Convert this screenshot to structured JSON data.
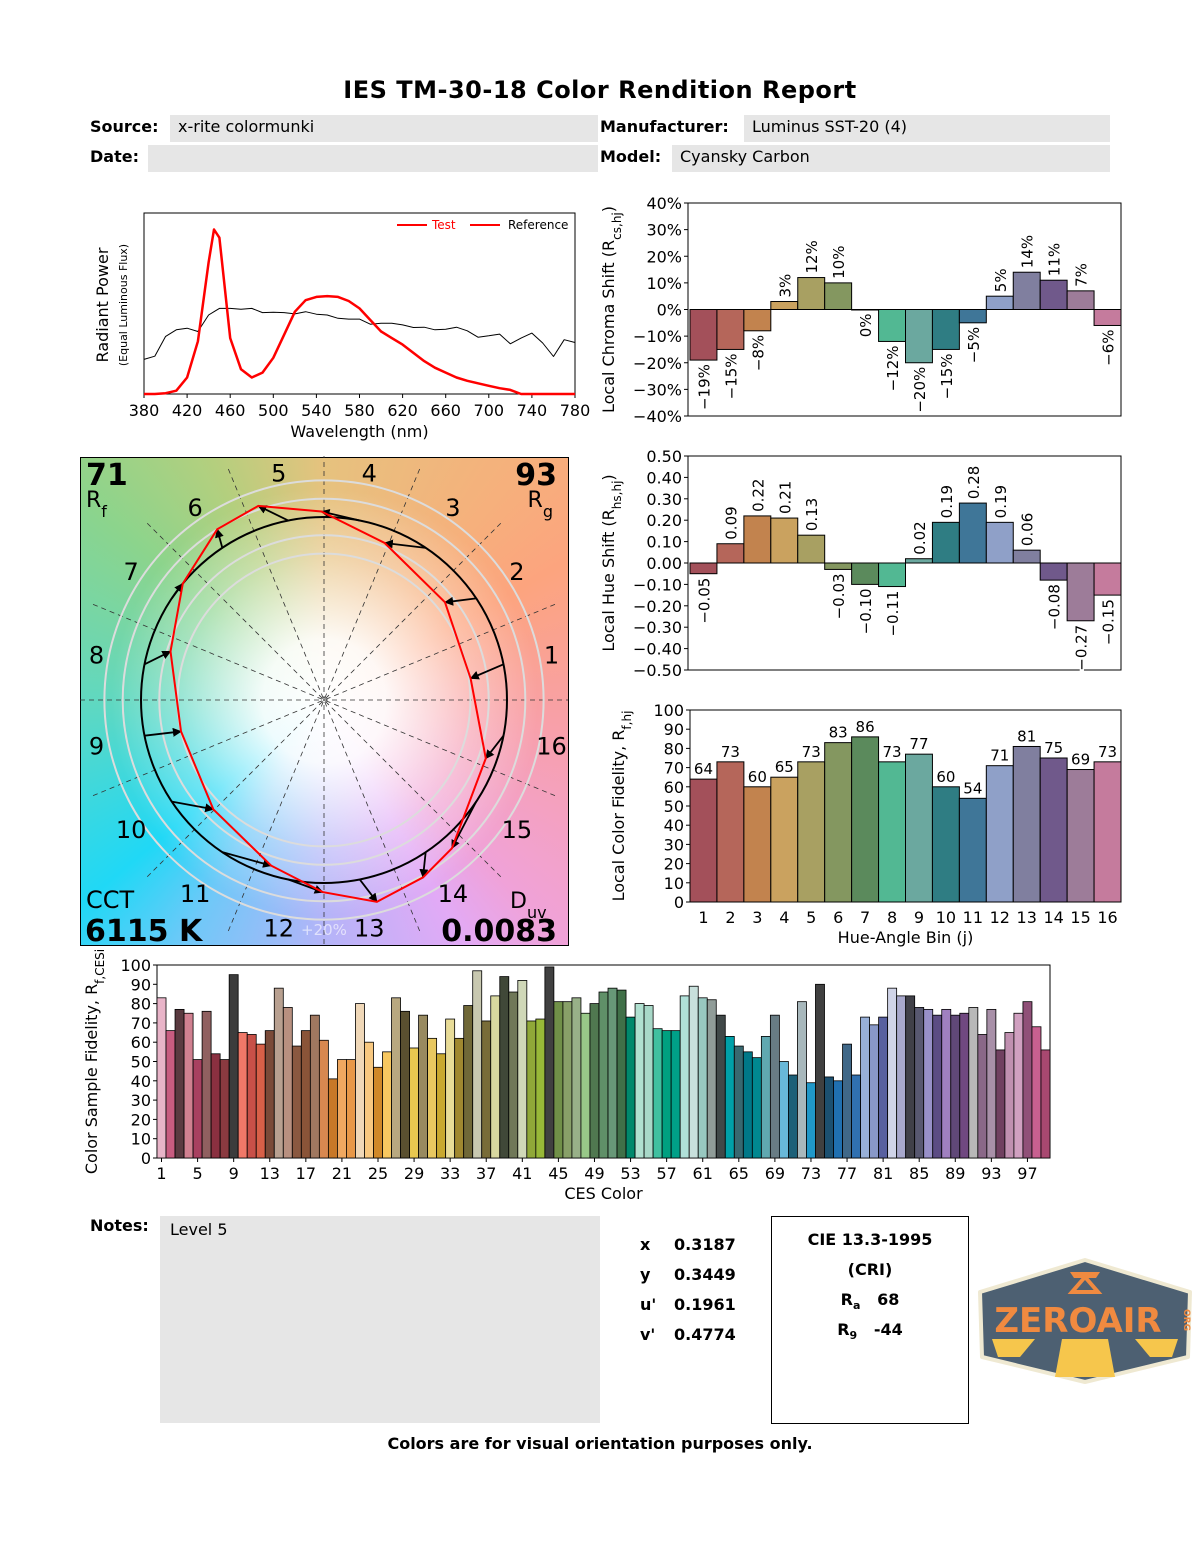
{
  "header": {
    "title": "IES TM-30-18 Color Rendition Report",
    "source_label": "Source:",
    "source_value": "x-rite colormunki",
    "date_label": "Date:",
    "date_value": "",
    "manufacturer_label": "Manufacturer:",
    "manufacturer_value": "Luminus SST-20 (4)",
    "model_label": "Model:",
    "model_value": "Cyansky Carbon"
  },
  "metrics": {
    "rf": "71",
    "rf_label": "R",
    "rf_sub": "f",
    "rg": "93",
    "rg_label": "R",
    "rg_sub": "g",
    "cct_label": "CCT",
    "cct": "6115 K",
    "duv_label": "D",
    "duv_sub": "uv",
    "duv": "0.0083"
  },
  "chromaticity": [
    {
      "label": "x",
      "value": "0.3187"
    },
    {
      "label": "y",
      "value": "0.3449"
    },
    {
      "label": "u'",
      "value": "0.1961"
    },
    {
      "label": "v'",
      "value": "0.4774"
    }
  ],
  "cri": {
    "title": "CIE 13.3-1995",
    "subtitle": "(CRI)",
    "ra_label": "R",
    "ra_sub": "a",
    "ra": "68",
    "r9_label": "R",
    "r9_sub": "9",
    "r9": "-44"
  },
  "notes": {
    "label": "Notes:",
    "text": "Level 5"
  },
  "footer": "Colors are for visual orientation purposes only.",
  "logo": {
    "text": "ZEROAIR",
    "suffix": "ORG"
  },
  "chart_data": [
    {
      "type": "line",
      "xlabel": "Wavelength (nm)",
      "ylabel": "Radiant Power",
      "ylabel2": "(Equal Luminous Flux)",
      "xlim": [
        380,
        780
      ],
      "ylim": [
        0,
        1.1
      ],
      "x_ticks": [
        380,
        420,
        460,
        500,
        540,
        580,
        620,
        660,
        700,
        740,
        780
      ],
      "legend": "top-right",
      "x": [
        380,
        390,
        400,
        410,
        420,
        430,
        440,
        445,
        450,
        460,
        470,
        480,
        490,
        500,
        510,
        520,
        530,
        540,
        550,
        560,
        570,
        580,
        590,
        600,
        610,
        620,
        630,
        640,
        650,
        660,
        670,
        680,
        690,
        700,
        710,
        720,
        730,
        740,
        750,
        760,
        770,
        780
      ],
      "series": [
        {
          "name": "Test",
          "color": "#ff0000",
          "values": [
            0,
            0,
            0.005,
            0.02,
            0.1,
            0.32,
            0.8,
            1.0,
            0.95,
            0.34,
            0.15,
            0.1,
            0.13,
            0.22,
            0.36,
            0.5,
            0.57,
            0.59,
            0.595,
            0.59,
            0.565,
            0.52,
            0.45,
            0.38,
            0.34,
            0.3,
            0.25,
            0.2,
            0.16,
            0.13,
            0.1,
            0.08,
            0.065,
            0.05,
            0.035,
            0.025,
            0,
            0,
            0,
            0,
            0,
            0
          ]
        },
        {
          "name": "Reference",
          "color": "#000000",
          "values": [
            0.21,
            0.23,
            0.35,
            0.39,
            0.4,
            0.38,
            0.48,
            0.5,
            0.52,
            0.52,
            0.515,
            0.52,
            0.495,
            0.497,
            0.495,
            0.487,
            0.5,
            0.485,
            0.48,
            0.46,
            0.455,
            0.455,
            0.424,
            0.43,
            0.43,
            0.42,
            0.404,
            0.406,
            0.39,
            0.394,
            0.406,
            0.384,
            0.345,
            0.354,
            0.364,
            0.305,
            0.34,
            0.37,
            0.31,
            0.228,
            0.33,
            0.313
          ]
        }
      ]
    },
    {
      "type": "vector",
      "bin_labels": [
        "1",
        "2",
        "3",
        "4",
        "5",
        "6",
        "7",
        "8",
        "9",
        "10",
        "11",
        "12",
        "13",
        "14",
        "15",
        "16"
      ],
      "ring_label": "+20%",
      "reference_color": "#000000",
      "test_color": "#ff0000"
    },
    {
      "type": "bar",
      "ylabel": "Local Chroma Shift (R",
      "ylabel_sub": "cs,hj",
      "ylabel_end": ")",
      "ylim": [
        -40,
        40
      ],
      "y_ticks": [
        40,
        30,
        20,
        10,
        0,
        -10,
        -20,
        -30,
        -40
      ],
      "y_tick_labels": [
        "40%",
        "30%",
        "20%",
        "10%",
        "0%",
        "−10%",
        "−20%",
        "−30%",
        "−40%"
      ],
      "categories": [
        1,
        2,
        3,
        4,
        5,
        6,
        7,
        8,
        9,
        10,
        11,
        12,
        13,
        14,
        15,
        16
      ],
      "values": [
        -19,
        -15,
        -8,
        3,
        12,
        10,
        0,
        -12,
        -20,
        -15,
        -5,
        5,
        14,
        11,
        7,
        -6
      ],
      "labels": [
        "−19%",
        "−15%",
        "−8%",
        "3%",
        "12%",
        "10%",
        "0%",
        "−12%",
        "−20%",
        "−15%",
        "−5%",
        "5%",
        "14%",
        "11%",
        "7%",
        "−6%"
      ]
    },
    {
      "type": "bar",
      "ylabel": "Local Hue Shift (R",
      "ylabel_sub": "hs,hj",
      "ylabel_end": ")",
      "ylim": [
        -0.5,
        0.5
      ],
      "y_ticks": [
        0.5,
        0.4,
        0.3,
        0.2,
        0.1,
        0,
        -0.1,
        -0.2,
        -0.3,
        -0.4,
        -0.5
      ],
      "y_tick_labels": [
        "0.50",
        "0.40",
        "0.30",
        "0.20",
        "0.10",
        "0.00",
        "−0.10",
        "−0.20",
        "−0.30",
        "−0.40",
        "−0.50"
      ],
      "categories": [
        1,
        2,
        3,
        4,
        5,
        6,
        7,
        8,
        9,
        10,
        11,
        12,
        13,
        14,
        15,
        16
      ],
      "values": [
        -0.05,
        0.09,
        0.22,
        0.21,
        0.13,
        -0.03,
        -0.1,
        -0.11,
        0.02,
        0.19,
        0.28,
        0.19,
        0.06,
        -0.08,
        -0.27,
        -0.15
      ],
      "labels": [
        "−0.05",
        "0.09",
        "0.22",
        "0.21",
        "0.13",
        "−0.03",
        "−0.10",
        "−0.11",
        "0.02",
        "0.19",
        "0.28",
        "0.19",
        "0.06",
        "−0.08",
        "−0.27",
        "−0.15"
      ]
    },
    {
      "type": "bar",
      "ylabel": "Local Color Fidelity, R",
      "ylabel_sub": "f,hj",
      "ylabel_end": "",
      "xlabel": "Hue-Angle Bin (j)",
      "ylim": [
        0,
        100
      ],
      "y_ticks": [
        100,
        90,
        80,
        70,
        60,
        50,
        40,
        30,
        20,
        10,
        0
      ],
      "categories": [
        1,
        2,
        3,
        4,
        5,
        6,
        7,
        8,
        9,
        10,
        11,
        12,
        13,
        14,
        15,
        16
      ],
      "values": [
        64,
        73,
        60,
        65,
        73,
        83,
        86,
        73,
        77,
        60,
        54,
        71,
        81,
        75,
        69,
        73
      ],
      "bin_colors": [
        "#a3505a",
        "#b5665a",
        "#c2834e",
        "#caa25f",
        "#a8a062",
        "#849760",
        "#5b8a5c",
        "#52b893",
        "#6ba89f",
        "#2f7d83",
        "#3f7698",
        "#8fa0c8",
        "#807f9f",
        "#70598b",
        "#9d7c99",
        "#c57b9d"
      ]
    },
    {
      "type": "bar",
      "ylabel": "Color Sample Fidelity, R",
      "ylabel_sub": "f,CESi",
      "xlabel": "CES Color",
      "ylim": [
        0,
        100
      ],
      "y_ticks": [
        100,
        90,
        80,
        70,
        60,
        50,
        40,
        30,
        20,
        10,
        0
      ],
      "x_ticks": [
        1,
        5,
        9,
        13,
        17,
        21,
        25,
        29,
        33,
        37,
        41,
        45,
        49,
        53,
        57,
        61,
        65,
        69,
        73,
        77,
        81,
        85,
        89,
        93,
        97
      ],
      "values": [
        83,
        66,
        77,
        75,
        51,
        76,
        54,
        51,
        95,
        65,
        64,
        59,
        66,
        88,
        78,
        58,
        66,
        74,
        61,
        41,
        51,
        51,
        80,
        60,
        47,
        55,
        83,
        76,
        57,
        74,
        62,
        54,
        72,
        62,
        79,
        97,
        71,
        84,
        94,
        86,
        92,
        71,
        72,
        99,
        81,
        81,
        83,
        75,
        80,
        86,
        88,
        87,
        73,
        80,
        79,
        67,
        66,
        66,
        84,
        89,
        83,
        82,
        74,
        63,
        58,
        55,
        52,
        63,
        74,
        50,
        43,
        81,
        39,
        90,
        42,
        40,
        59,
        43,
        73,
        69,
        73,
        88,
        84,
        84,
        78,
        77,
        74,
        77,
        74,
        75,
        78,
        64,
        77,
        56,
        65,
        75,
        81,
        68,
        56
      ],
      "colors": [
        "#e8b4c8",
        "#c85c80",
        "#5a3a40",
        "#d08090",
        "#a84060",
        "#906060",
        "#8a3040",
        "#8a3a40",
        "#3c3c3c",
        "#f07868",
        "#c85048",
        "#d86048",
        "#7a4a38",
        "#b8a090",
        "#b89080",
        "#8a5840",
        "#8a5438",
        "#a07860",
        "#d88850",
        "#c87828",
        "#f0a860",
        "#e89848",
        "#f0d8b8",
        "#f8c880",
        "#d08828",
        "#f8c860",
        "#b8a880",
        "#5a5030",
        "#e8c850",
        "#988a60",
        "#e8c860",
        "#c8a830",
        "#e8dc98",
        "#a08830",
        "#706838",
        "#c8c8b0",
        "#786c38",
        "#d8d8a0",
        "#404838",
        "#707858",
        "#d0d8b8",
        "#90a838",
        "#98b838",
        "#404040",
        "#709048",
        "#88a068",
        "#98b088",
        "#98c888",
        "#507850",
        "#609068",
        "#689878",
        "#407048",
        "#00886c",
        "#b0e0d0",
        "#a8d8c8",
        "#40c0a0",
        "#00a080",
        "#00a088",
        "#b0e0d8",
        "#c8e0dc",
        "#98c8c0",
        "#909c98",
        "#404848",
        "#00a0a8",
        "#386870",
        "#007888",
        "#008890",
        "#60a8b0",
        "#687c84",
        "#68b8d8",
        "#1c6078",
        "#a8b8bc",
        "#2098c8",
        "#404040",
        "#1c5070",
        "#2070b0",
        "#406888",
        "#3070b0",
        "#98b0d8",
        "#8898c8",
        "#5860a0",
        "#d0d4e8",
        "#a8a8cc",
        "#404048",
        "#585870",
        "#9890c8",
        "#5c4c84",
        "#a080c0",
        "#604878",
        "#704880",
        "#b8b8b8",
        "#8a6888",
        "#a890a8",
        "#704060",
        "#c090b0",
        "#d0a0c0",
        "#905078",
        "#c86090",
        "#a84870"
      ]
    }
  ]
}
